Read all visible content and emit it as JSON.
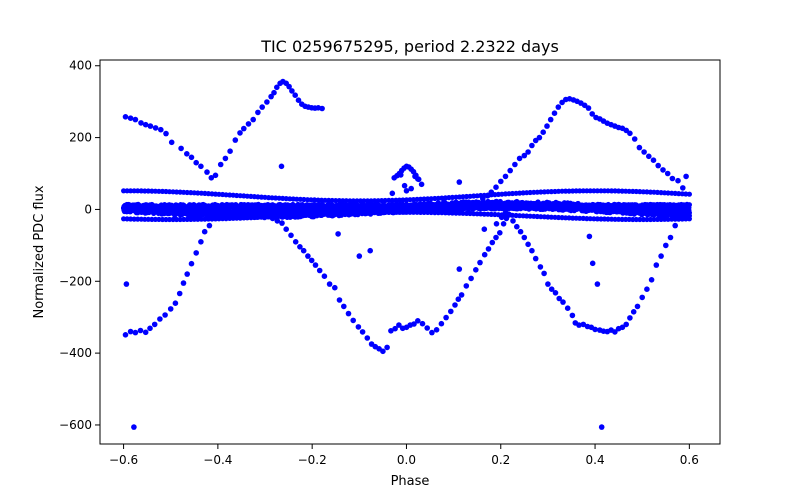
{
  "chart_data": {
    "type": "scatter",
    "title": "TIC 0259675295, period 2.2322 days",
    "xlabel": "Phase",
    "ylabel": "Normalized PDC flux",
    "xlim": [
      -0.65,
      0.665
    ],
    "ylim": [
      -653,
      416
    ],
    "x_ticks": [
      -0.6,
      -0.4,
      -0.2,
      0.0,
      0.2,
      0.4,
      0.6
    ],
    "x_tick_labels": [
      "−0.6",
      "−0.4",
      "−0.2",
      "0.0",
      "0.2",
      "0.4",
      "0.6"
    ],
    "y_ticks": [
      400,
      200,
      0,
      -200,
      -400,
      -600
    ],
    "y_tick_labels": [
      "400",
      "200",
      "0",
      "−200",
      "−400",
      "−600"
    ],
    "grid": false,
    "legend": "none",
    "marker_color": "#0000ff",
    "series": [
      {
        "points": [
          [
            -0.596,
            258
          ],
          [
            -0.585,
            254
          ],
          [
            -0.575,
            250
          ],
          [
            -0.563,
            241
          ],
          [
            -0.553,
            236
          ],
          [
            -0.543,
            232
          ],
          [
            -0.532,
            227
          ],
          [
            -0.521,
            222
          ],
          [
            -0.51,
            211
          ],
          [
            -0.498,
            187
          ],
          [
            -0.478,
            170
          ],
          [
            -0.466,
            155
          ],
          [
            -0.456,
            145
          ],
          [
            -0.446,
            130
          ],
          [
            -0.436,
            120
          ],
          [
            -0.423,
            104
          ],
          [
            -0.414,
            88
          ],
          [
            -0.405,
            95
          ],
          [
            -0.394,
            125
          ],
          [
            -0.384,
            142
          ],
          [
            -0.374,
            162
          ],
          [
            -0.363,
            193
          ],
          [
            -0.353,
            213
          ],
          [
            -0.345,
            225
          ],
          [
            -0.335,
            238
          ],
          [
            -0.325,
            250
          ],
          [
            -0.315,
            270
          ],
          [
            -0.306,
            285
          ],
          [
            -0.296,
            299
          ],
          [
            -0.287,
            314
          ],
          [
            -0.281,
            325
          ],
          [
            -0.275,
            340
          ],
          [
            -0.268,
            351
          ],
          [
            -0.262,
            356
          ],
          [
            -0.255,
            351
          ],
          [
            -0.249,
            342
          ],
          [
            -0.243,
            330
          ],
          [
            -0.236,
            318
          ],
          [
            -0.229,
            304
          ],
          [
            -0.222,
            293
          ],
          [
            -0.215,
            287
          ],
          [
            -0.208,
            285
          ],
          [
            -0.201,
            283
          ],
          [
            -0.194,
            282
          ],
          [
            -0.187,
            283
          ],
          [
            -0.179,
            281
          ],
          [
            -0.265,
            120
          ],
          [
            -0.596,
            -349
          ],
          [
            -0.585,
            -340
          ],
          [
            -0.575,
            -343
          ],
          [
            -0.564,
            -337
          ],
          [
            -0.553,
            -342
          ],
          [
            -0.544,
            -331
          ],
          [
            -0.534,
            -320
          ],
          [
            -0.523,
            -305
          ],
          [
            -0.512,
            -294
          ],
          [
            -0.5,
            -277
          ],
          [
            -0.49,
            -261
          ],
          [
            -0.481,
            -234
          ],
          [
            -0.473,
            -205
          ],
          [
            -0.465,
            -180
          ],
          [
            -0.456,
            -151
          ],
          [
            -0.446,
            -121
          ],
          [
            -0.436,
            -90
          ],
          [
            -0.428,
            -62
          ],
          [
            -0.418,
            -45
          ],
          [
            -0.404,
            -10
          ],
          [
            -0.594,
            -208
          ],
          [
            -0.578,
            -606
          ],
          [
            -0.284,
            -25
          ],
          [
            -0.274,
            -32
          ],
          [
            -0.264,
            -38
          ],
          [
            -0.255,
            -55
          ],
          [
            -0.245,
            -72
          ],
          [
            -0.235,
            -90
          ],
          [
            -0.226,
            -104
          ],
          [
            -0.218,
            -115
          ],
          [
            -0.209,
            -130
          ],
          [
            -0.201,
            -142
          ],
          [
            -0.193,
            -155
          ],
          [
            -0.184,
            -170
          ],
          [
            -0.174,
            -186
          ],
          [
            -0.163,
            -208
          ],
          [
            -0.152,
            -218
          ],
          [
            -0.142,
            -252
          ],
          [
            -0.133,
            -270
          ],
          [
            -0.123,
            -290
          ],
          [
            -0.113,
            -309
          ],
          [
            -0.102,
            -327
          ],
          [
            -0.093,
            -341
          ],
          [
            -0.083,
            -358
          ],
          [
            -0.074,
            -375
          ],
          [
            -0.066,
            -382
          ],
          [
            -0.058,
            -388
          ],
          [
            -0.05,
            -395
          ],
          [
            -0.041,
            -384
          ],
          [
            -0.033,
            -338
          ],
          [
            -0.024,
            -332
          ],
          [
            -0.016,
            -322
          ],
          [
            -0.008,
            -331
          ],
          [
            0.0,
            -328
          ],
          [
            0.008,
            -322
          ],
          [
            0.016,
            -319
          ],
          [
            0.024,
            -310
          ],
          [
            0.034,
            -318
          ],
          [
            0.044,
            -330
          ],
          [
            0.054,
            -343
          ],
          [
            0.064,
            -335
          ],
          [
            0.074,
            -318
          ],
          [
            0.084,
            -301
          ],
          [
            0.094,
            -284
          ],
          [
            0.103,
            -266
          ],
          [
            0.11,
            -250
          ],
          [
            0.117,
            -238
          ],
          [
            0.127,
            -213
          ],
          [
            0.137,
            -192
          ],
          [
            0.147,
            -168
          ],
          [
            0.156,
            -148
          ],
          [
            0.166,
            -126
          ],
          [
            0.174,
            -110
          ],
          [
            0.182,
            -92
          ],
          [
            0.19,
            -78
          ],
          [
            0.198,
            -65
          ],
          [
            0.206,
            -40
          ],
          [
            0.212,
            -25
          ],
          [
            -0.145,
            -68
          ],
          [
            -0.1,
            -130
          ],
          [
            -0.077,
            -115
          ],
          [
            0.112,
            -166
          ],
          [
            0.165,
            -55
          ],
          [
            0.191,
            -40
          ],
          [
            0.202,
            -22
          ],
          [
            0.21,
            -10
          ],
          [
            0.218,
            -14
          ],
          [
            0.226,
            -32
          ],
          [
            0.234,
            -48
          ],
          [
            0.242,
            -62
          ],
          [
            0.25,
            -78
          ],
          [
            0.258,
            -97
          ],
          [
            0.266,
            -115
          ],
          [
            0.274,
            -137
          ],
          [
            0.284,
            -160
          ],
          [
            0.292,
            -178
          ],
          [
            0.3,
            -208
          ],
          [
            0.308,
            -222
          ],
          [
            0.316,
            -232
          ],
          [
            0.324,
            -248
          ],
          [
            0.332,
            -258
          ],
          [
            0.342,
            -275
          ],
          [
            0.352,
            -295
          ],
          [
            0.358,
            -316
          ],
          [
            0.366,
            -322
          ],
          [
            0.375,
            -320
          ],
          [
            0.384,
            -326
          ],
          [
            0.392,
            -328
          ],
          [
            0.4,
            -334
          ],
          [
            0.41,
            -336
          ],
          [
            0.418,
            -339
          ],
          [
            0.426,
            -340
          ],
          [
            0.434,
            -336
          ],
          [
            0.442,
            -341
          ],
          [
            0.45,
            -332
          ],
          [
            0.458,
            -328
          ],
          [
            0.466,
            -320
          ],
          [
            0.474,
            -302
          ],
          [
            0.482,
            -285
          ],
          [
            0.49,
            -270
          ],
          [
            0.5,
            -245
          ],
          [
            0.51,
            -222
          ],
          [
            0.52,
            -196
          ],
          [
            0.53,
            -155
          ],
          [
            0.54,
            -130
          ],
          [
            0.55,
            -100
          ],
          [
            0.56,
            -78
          ],
          [
            0.57,
            -45
          ],
          [
            0.58,
            -20
          ],
          [
            0.395,
            -150
          ],
          [
            0.405,
            -208
          ],
          [
            0.388,
            -75
          ],
          [
            0.414,
            -606
          ],
          [
            0.162,
            30
          ],
          [
            0.172,
            38
          ],
          [
            0.18,
            48
          ],
          [
            0.19,
            62
          ],
          [
            0.2,
            78
          ],
          [
            0.21,
            92
          ],
          [
            0.22,
            108
          ],
          [
            0.23,
            125
          ],
          [
            0.24,
            142
          ],
          [
            0.25,
            150
          ],
          [
            0.258,
            160
          ],
          [
            0.266,
            178
          ],
          [
            0.274,
            192
          ],
          [
            0.282,
            200
          ],
          [
            0.29,
            215
          ],
          [
            0.298,
            232
          ],
          [
            0.306,
            250
          ],
          [
            0.314,
            268
          ],
          [
            0.322,
            285
          ],
          [
            0.33,
            298
          ],
          [
            0.338,
            306
          ],
          [
            0.346,
            308
          ],
          [
            0.354,
            305
          ],
          [
            0.362,
            301
          ],
          [
            0.37,
            296
          ],
          [
            0.378,
            290
          ],
          [
            0.386,
            282
          ],
          [
            0.394,
            266
          ],
          [
            0.402,
            256
          ],
          [
            0.41,
            252
          ],
          [
            0.418,
            246
          ],
          [
            0.426,
            240
          ],
          [
            0.434,
            236
          ],
          [
            0.442,
            232
          ],
          [
            0.45,
            228
          ],
          [
            0.458,
            226
          ],
          [
            0.466,
            220
          ],
          [
            0.474,
            212
          ],
          [
            0.484,
            196
          ],
          [
            0.494,
            172
          ],
          [
            0.504,
            160
          ],
          [
            0.514,
            148
          ],
          [
            0.524,
            137
          ],
          [
            0.534,
            122
          ],
          [
            0.544,
            110
          ],
          [
            0.554,
            100
          ],
          [
            0.564,
            86
          ],
          [
            0.576,
            80
          ],
          [
            0.586,
            60
          ],
          [
            0.593,
            92
          ],
          [
            -0.015,
            100
          ],
          [
            -0.01,
            108
          ],
          [
            -0.005,
            115
          ],
          [
            0.0,
            120
          ],
          [
            0.005,
            118
          ],
          [
            0.01,
            112
          ],
          [
            0.015,
            105
          ],
          [
            0.02,
            95
          ],
          [
            0.026,
            84
          ],
          [
            0.032,
            70
          ],
          [
            -0.026,
            88
          ],
          [
            -0.02,
            94
          ],
          [
            -0.012,
            96
          ],
          [
            0.018,
            92
          ],
          [
            0.024,
            85
          ],
          [
            -0.004,
            66
          ],
          [
            0.112,
            76
          ],
          [
            0.0,
            52
          ],
          [
            0.01,
            58
          ],
          [
            -0.03,
            45
          ]
        ]
      }
    ]
  }
}
